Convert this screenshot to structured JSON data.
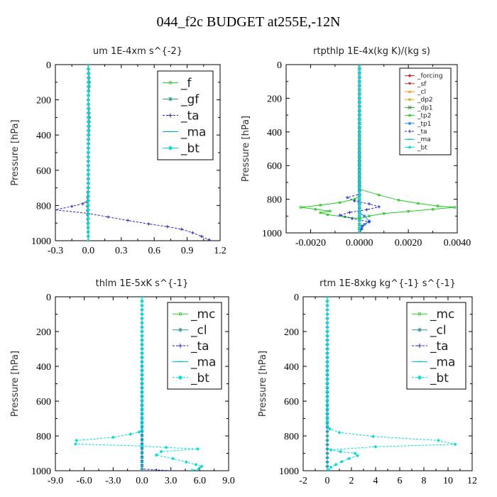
{
  "page_title": "044_f2c  BUDGET at255E,-12N",
  "chart_data": [
    {
      "type": "line",
      "title": "um  1E-4xm s^{-2}",
      "ylabel": "Pressure [hPa]",
      "xlim": [
        -0.3,
        1.2
      ],
      "ylim": [
        1000,
        0
      ],
      "xticks": [
        "-0.3",
        "0.0",
        "0.3",
        "0.6",
        "0.9",
        "1.2"
      ],
      "xtick_values": [
        -0.3,
        0.0,
        0.3,
        0.6,
        0.9,
        1.2
      ],
      "yticks": [
        "0",
        "200",
        "400",
        "600",
        "800",
        "1000"
      ],
      "ytick_values": [
        0,
        200,
        400,
        600,
        800,
        1000
      ],
      "legend_position": "top-right",
      "series": [
        {
          "name": "_f",
          "color": "#33cc33",
          "style": "solid",
          "marker": "circle",
          "points": [
            [
              0.0,
              0
            ],
            [
              0.0,
              1000
            ]
          ]
        },
        {
          "name": "_gf",
          "color": "#339999",
          "style": "solid",
          "marker": "star",
          "points": [
            [
              0.0,
              0
            ],
            [
              0.01,
              100
            ],
            [
              0.0,
              200
            ],
            [
              0.01,
              300
            ],
            [
              0.0,
              500
            ],
            [
              0.0,
              700
            ],
            [
              -0.01,
              780
            ],
            [
              0.0,
              1000
            ]
          ]
        },
        {
          "name": "_ta",
          "color": "#2222cc",
          "style": "dashed",
          "marker": "plus",
          "points": [
            [
              0.0,
              0
            ],
            [
              0.0,
              770
            ],
            [
              -0.05,
              790
            ],
            [
              -0.15,
              805
            ],
            [
              -0.3,
              825
            ],
            [
              0.0,
              845
            ],
            [
              0.18,
              865
            ],
            [
              0.36,
              885
            ],
            [
              0.55,
              905
            ],
            [
              0.72,
              920
            ],
            [
              0.85,
              935
            ],
            [
              0.95,
              955
            ],
            [
              1.03,
              975
            ],
            [
              1.1,
              995
            ]
          ]
        },
        {
          "name": "_ma",
          "color": "#00aacc",
          "style": "solid",
          "marker": "dash",
          "points": [
            [
              0.0,
              0
            ],
            [
              0.0,
              1000
            ]
          ]
        },
        {
          "name": "_bt",
          "color": "#00dddd",
          "style": "solid",
          "marker": "diamond",
          "points": [
            [
              0.0,
              0
            ],
            [
              0.0,
              1000
            ]
          ]
        }
      ]
    },
    {
      "type": "line",
      "title": "rtpthlp  1E-4x(kg K)/(kg s)",
      "ylabel": "Pressure [hPa]",
      "xlim": [
        -0.003,
        0.004
      ],
      "ylim": [
        1000,
        0
      ],
      "xticks": [
        "-0.0020",
        "0.0000",
        "0.0020",
        "0.0040"
      ],
      "xtick_values": [
        -0.002,
        0.0,
        0.002,
        0.004
      ],
      "yticks": [
        "0",
        "200",
        "400",
        "600",
        "800",
        "1000"
      ],
      "ytick_values": [
        0,
        200,
        400,
        600,
        800,
        1000
      ],
      "legend_position": "top-right",
      "series": [
        {
          "name": "_forcing",
          "color": "#dd2222",
          "style": "solid",
          "marker": "diamond",
          "points": [
            [
              0.0,
              0
            ],
            [
              0.0,
              1000
            ]
          ]
        },
        {
          "name": "_sf",
          "color": "#cc3333",
          "style": "solid",
          "marker": "triangle-down",
          "points": [
            [
              0.0,
              0
            ],
            [
              0.0,
              1000
            ]
          ]
        },
        {
          "name": "_cl",
          "color": "#ee9922",
          "style": "solid",
          "marker": "triangle",
          "points": [
            [
              0.0,
              0
            ],
            [
              0.0,
              1000
            ]
          ]
        },
        {
          "name": "_dp2",
          "color": "#ddaa00",
          "style": "solid",
          "marker": "circle",
          "points": [
            [
              0.0,
              0
            ],
            [
              0.0,
              1000
            ]
          ]
        },
        {
          "name": "_dp1",
          "color": "#339933",
          "style": "solid",
          "marker": "x",
          "points": [
            [
              0.0,
              0
            ],
            [
              0.0,
              1000
            ]
          ]
        },
        {
          "name": "_tp2",
          "color": "#22cc22",
          "style": "solid",
          "marker": "circle",
          "points": [
            [
              0.0,
              0
            ],
            [
              0.0,
              740
            ],
            [
              0.0008,
              775
            ],
            [
              0.0016,
              805
            ],
            [
              0.0024,
              825
            ],
            [
              0.0032,
              840
            ],
            [
              0.0039,
              848
            ],
            [
              0.003,
              860
            ],
            [
              0.002,
              872
            ],
            [
              0.001,
              885
            ],
            [
              0.0004,
              900
            ],
            [
              0.0,
              915
            ],
            [
              -0.0006,
              905
            ],
            [
              -0.0013,
              892
            ],
            [
              -0.0016,
              880
            ],
            [
              -0.0012,
              870
            ],
            [
              -0.0018,
              860
            ],
            [
              -0.0024,
              848
            ],
            [
              -0.0016,
              835
            ],
            [
              -0.0008,
              820
            ],
            [
              -0.0002,
              800
            ],
            [
              0.0,
              780
            ]
          ]
        },
        {
          "name": "_tp1",
          "color": "#3388ee",
          "style": "solid",
          "marker": "star",
          "points": [
            [
              0.0,
              0
            ],
            [
              0.0,
              880
            ],
            [
              0.0002,
              900
            ],
            [
              0.0004,
              930
            ],
            [
              0.0002,
              950
            ],
            [
              0.0,
              1000
            ]
          ]
        },
        {
          "name": "_ta",
          "color": "#2222cc",
          "style": "dashed",
          "marker": "plus",
          "points": [
            [
              0.0,
              0
            ],
            [
              0.0,
              770
            ],
            [
              -0.0005,
              790
            ],
            [
              -0.0002,
              810
            ],
            [
              0.0004,
              828
            ],
            [
              0.0008,
              845
            ],
            [
              0.0003,
              862
            ],
            [
              -0.0004,
              878
            ],
            [
              -0.0008,
              895
            ],
            [
              -0.0003,
              915
            ],
            [
              0.0004,
              935
            ],
            [
              0.0001,
              960
            ],
            [
              0.0,
              1000
            ]
          ]
        },
        {
          "name": "_ma",
          "color": "#00aacc",
          "style": "solid",
          "marker": "dash",
          "points": [
            [
              0.0,
              0
            ],
            [
              0.0,
              1000
            ]
          ]
        },
        {
          "name": "_bt",
          "color": "#00dddd",
          "style": "solid",
          "marker": "diamond",
          "points": [
            [
              0.0,
              0
            ],
            [
              0.0,
              1000
            ]
          ]
        }
      ]
    },
    {
      "type": "line",
      "title": "thlm  1E-5xK s^{-1}",
      "ylabel": "Pressure [hPa]",
      "xlim": [
        -9.0,
        9.0
      ],
      "ylim": [
        1000,
        0
      ],
      "xticks": [
        "-9.0",
        "-6.0",
        "-3.0",
        "0.0",
        "3.0",
        "6.0",
        "9.0"
      ],
      "xtick_values": [
        -9.0,
        -6.0,
        -3.0,
        0.0,
        3.0,
        6.0,
        9.0
      ],
      "yticks": [
        "0",
        "200",
        "400",
        "600",
        "800",
        "1000"
      ],
      "ytick_values": [
        0,
        200,
        400,
        600,
        800,
        1000
      ],
      "legend_position": "top-right",
      "series": [
        {
          "name": "_mc",
          "color": "#33cc33",
          "style": "solid",
          "marker": "circle",
          "points": [
            [
              0.0,
              0
            ],
            [
              0.0,
              1000
            ]
          ]
        },
        {
          "name": "_cl",
          "color": "#339999",
          "style": "solid",
          "marker": "star",
          "points": [
            [
              0.0,
              0
            ],
            [
              0.0,
              1000
            ]
          ]
        },
        {
          "name": "_ta",
          "color": "#2222cc",
          "style": "dashed",
          "marker": "plus",
          "points": [
            [
              0.0,
              0
            ],
            [
              0.0,
              990
            ],
            [
              3.0,
              1000
            ]
          ]
        },
        {
          "name": "_ma",
          "color": "#00aacc",
          "style": "solid",
          "marker": "dash",
          "points": [
            [
              0.0,
              0
            ],
            [
              0.0,
              1000
            ]
          ]
        },
        {
          "name": "_bt",
          "color": "#00dddd",
          "style": "dashed",
          "marker": "diamond",
          "points": [
            [
              0.0,
              0
            ],
            [
              0.0,
              765
            ],
            [
              -0.3,
              778
            ],
            [
              -1.2,
              790
            ],
            [
              -3.0,
              808
            ],
            [
              -6.8,
              826
            ],
            [
              -6.9,
              846
            ],
            [
              0.0,
              858
            ],
            [
              2.5,
              866
            ],
            [
              5.8,
              875
            ],
            [
              2.0,
              890
            ],
            [
              1.5,
              910
            ],
            [
              3.2,
              930
            ],
            [
              4.6,
              950
            ],
            [
              5.6,
              965
            ],
            [
              6.2,
              975
            ],
            [
              5.9,
              990
            ],
            [
              5.2,
              998
            ]
          ]
        }
      ]
    },
    {
      "type": "line",
      "title": "rtm  1E-8xkg kg^{-1} s^{-1}",
      "ylabel": "Pressure [hPa]",
      "xlim": [
        -2,
        12
      ],
      "ylim": [
        1000,
        0
      ],
      "xticks": [
        "-2",
        "0",
        "2",
        "4",
        "6",
        "8",
        "10",
        "12"
      ],
      "xtick_values": [
        -2,
        0,
        2,
        4,
        6,
        8,
        10,
        12
      ],
      "yticks": [
        "0",
        "200",
        "400",
        "600",
        "800",
        "1000"
      ],
      "ytick_values": [
        0,
        200,
        400,
        600,
        800,
        1000
      ],
      "legend_position": "top-right",
      "series": [
        {
          "name": "_mc",
          "color": "#33cc33",
          "style": "solid",
          "marker": "circle",
          "points": [
            [
              0.0,
              0
            ],
            [
              0.0,
              1000
            ]
          ]
        },
        {
          "name": "_cl",
          "color": "#339999",
          "style": "solid",
          "marker": "star",
          "points": [
            [
              0.0,
              0
            ],
            [
              0.0,
              1000
            ]
          ]
        },
        {
          "name": "_ta",
          "color": "#2222cc",
          "style": "dashed",
          "marker": "plus",
          "points": [
            [
              0.0,
              0
            ],
            [
              0.0,
              1000
            ]
          ]
        },
        {
          "name": "_ma",
          "color": "#00aacc",
          "style": "solid",
          "marker": "dash",
          "points": [
            [
              0.0,
              0
            ],
            [
              0.0,
              1000
            ]
          ]
        },
        {
          "name": "_bt",
          "color": "#00dddd",
          "style": "dashed",
          "marker": "diamond",
          "points": [
            [
              0.0,
              0
            ],
            [
              0.0,
              740
            ],
            [
              0.2,
              760
            ],
            [
              1.0,
              780
            ],
            [
              3.8,
              803
            ],
            [
              9.2,
              826
            ],
            [
              10.6,
              848
            ],
            [
              4.0,
              862
            ],
            [
              0.3,
              880
            ],
            [
              1.1,
              890
            ],
            [
              2.3,
              900
            ],
            [
              2.5,
              913
            ],
            [
              1.8,
              930
            ],
            [
              1.2,
              948
            ],
            [
              0.7,
              965
            ],
            [
              0.3,
              980
            ],
            [
              0.1,
              995
            ]
          ]
        }
      ]
    }
  ]
}
